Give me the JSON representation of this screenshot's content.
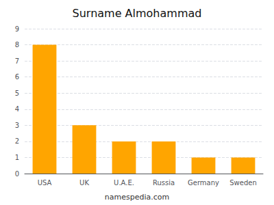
{
  "chart_data": {
    "type": "bar",
    "title": "Surname Almohammad",
    "categories": [
      "USA",
      "UK",
      "U.A.E.",
      "Russia",
      "Germany",
      "Sweden"
    ],
    "values": [
      8,
      3,
      2,
      2,
      1,
      1
    ],
    "color": "#FFA500",
    "ylim": [
      0,
      9
    ],
    "yticks": [
      0,
      1,
      2,
      3,
      4,
      5,
      6,
      7,
      8,
      9
    ],
    "grid": true,
    "annotations": [
      "namespedia.com"
    ]
  }
}
